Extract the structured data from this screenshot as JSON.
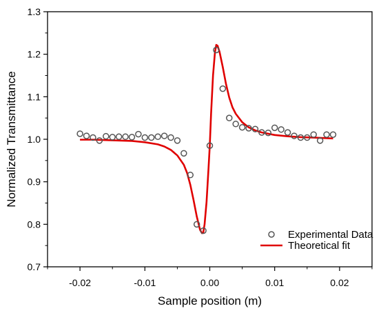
{
  "chart_data": {
    "type": "scatter",
    "title": "",
    "xlabel": "Sample position (m)",
    "ylabel": "Normalized Transmittance",
    "xlim": [
      -0.025,
      0.025
    ],
    "ylim": [
      0.7,
      1.3
    ],
    "x_ticks": [
      -0.02,
      -0.01,
      0.0,
      0.01,
      0.02
    ],
    "x_tick_labels": [
      "-0.02",
      "-0.01",
      "0.00",
      "0.01",
      "0.02"
    ],
    "y_ticks": [
      0.7,
      0.8,
      0.9,
      1.0,
      1.1,
      1.2,
      1.3
    ],
    "y_tick_labels": [
      "0.7",
      "0.8",
      "0.9",
      "1.0",
      "1.1",
      "1.2",
      "1.3"
    ],
    "grid": false,
    "legend_position": "bottom-right",
    "series": [
      {
        "name": "Experimental Data",
        "kind": "scatter",
        "marker": "open-circle",
        "color": "#555555",
        "x": [
          -0.02,
          -0.019,
          -0.018,
          -0.017,
          -0.016,
          -0.015,
          -0.014,
          -0.013,
          -0.012,
          -0.011,
          -0.01,
          -0.009,
          -0.008,
          -0.007,
          -0.006,
          -0.005,
          -0.004,
          -0.003,
          -0.002,
          -0.001,
          0.0,
          0.001,
          0.002,
          0.003,
          0.004,
          0.005,
          0.006,
          0.007,
          0.008,
          0.009,
          0.01,
          0.011,
          0.012,
          0.013,
          0.014,
          0.015,
          0.016,
          0.017,
          0.018,
          0.019
        ],
        "y": [
          1.013,
          1.008,
          1.004,
          0.997,
          1.007,
          1.005,
          1.006,
          1.006,
          1.005,
          1.012,
          1.004,
          1.004,
          1.006,
          1.008,
          1.004,
          0.997,
          0.967,
          0.916,
          0.8,
          0.785,
          0.985,
          1.21,
          1.119,
          1.05,
          1.036,
          1.028,
          1.026,
          1.024,
          1.016,
          1.015,
          1.027,
          1.023,
          1.016,
          1.008,
          1.004,
          1.004,
          1.011,
          0.997,
          1.011,
          1.011
        ]
      },
      {
        "name": "Theoretical fit",
        "kind": "line",
        "color": "#e00000",
        "x": [
          -0.02,
          -0.018,
          -0.016,
          -0.014,
          -0.012,
          -0.01,
          -0.008,
          -0.007,
          -0.006,
          -0.005,
          -0.004,
          -0.0035,
          -0.003,
          -0.0025,
          -0.002,
          -0.0015,
          -0.0012,
          -0.001,
          -0.0008,
          -0.0005,
          -0.0002,
          0.0,
          0.0002,
          0.0005,
          0.0008,
          0.001,
          0.0012,
          0.0015,
          0.002,
          0.0025,
          0.003,
          0.0035,
          0.004,
          0.005,
          0.006,
          0.007,
          0.008,
          0.01,
          0.012,
          0.014,
          0.016,
          0.019
        ],
        "y": [
          0.999,
          0.999,
          0.998,
          0.997,
          0.996,
          0.993,
          0.988,
          0.983,
          0.975,
          0.962,
          0.94,
          0.921,
          0.893,
          0.857,
          0.818,
          0.787,
          0.779,
          0.781,
          0.8,
          0.852,
          0.93,
          0.985,
          1.06,
          1.15,
          1.205,
          1.222,
          1.22,
          1.206,
          1.17,
          1.13,
          1.098,
          1.075,
          1.06,
          1.04,
          1.028,
          1.021,
          1.016,
          1.01,
          1.007,
          1.005,
          1.004,
          1.002
        ]
      }
    ]
  }
}
